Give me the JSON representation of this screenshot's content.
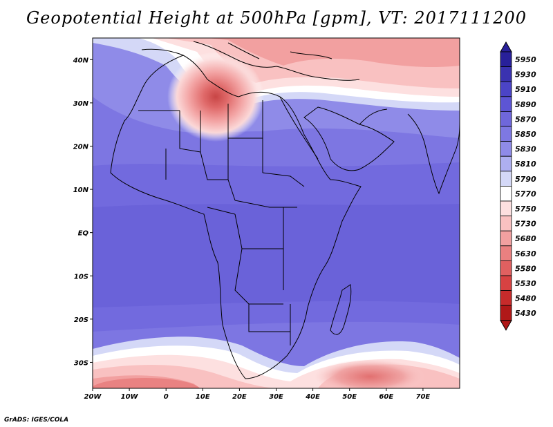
{
  "title": "Geopotential Height at 500hPa [gpm], VT: 2017111200",
  "credit": "GrADS: IGES/COLA",
  "map": {
    "variable": "Geopotential Height at 500hPa",
    "units": "gpm",
    "valid_time": "2017111200",
    "lon_range": [
      -20,
      80
    ],
    "lat_range": [
      -36,
      45
    ],
    "lon_ticks": [
      "20W",
      "10W",
      "0",
      "10E",
      "20E",
      "30E",
      "40E",
      "50E",
      "60E",
      "70E"
    ],
    "lat_ticks": [
      "40N",
      "30N",
      "20N",
      "10N",
      "EQ",
      "10S",
      "20S",
      "30S"
    ],
    "features": [
      {
        "type": "low",
        "label": "North Africa cut-off low",
        "lon": 13,
        "lat": 31
      },
      {
        "type": "ridge",
        "label": "Subtropical high band",
        "lat_range": [
          -28,
          27
        ]
      },
      {
        "type": "trough",
        "label": "Southern mid-latitude lows",
        "lat_range": [
          -36,
          -30
        ]
      }
    ]
  },
  "colorbar": {
    "levels": [
      "5950",
      "5930",
      "5910",
      "5890",
      "5870",
      "5850",
      "5830",
      "5810",
      "5790",
      "5770",
      "5750",
      "5730",
      "5680",
      "5630",
      "5580",
      "5530",
      "5480",
      "5430"
    ],
    "colors": [
      "#28209a",
      "#3a32b0",
      "#4b44c6",
      "#5d55d4",
      "#6f67db",
      "#7e78e2",
      "#8f8be8",
      "#aeaff0",
      "#d4d8f7",
      "#ffffff",
      "#fde0e0",
      "#f9c1c1",
      "#f2a0a0",
      "#ea8080",
      "#e06060",
      "#d74242",
      "#c72b2b",
      "#b01818"
    ]
  }
}
